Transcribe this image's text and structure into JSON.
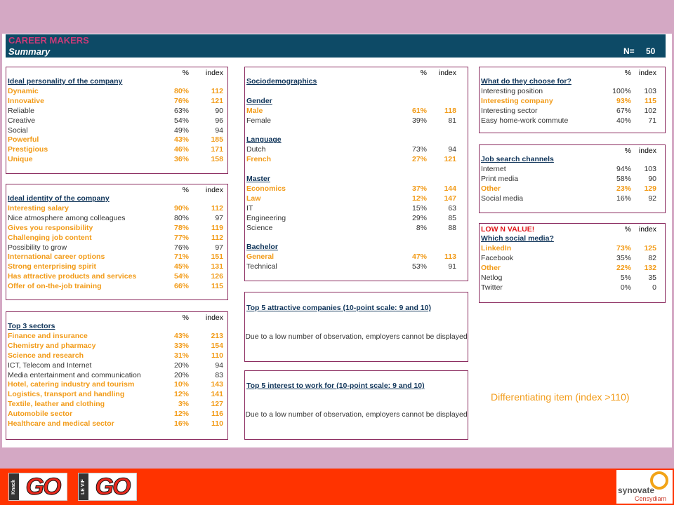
{
  "header": {
    "title": "CAREER MAKERS",
    "subtitle": "Summary",
    "n_label": "N=",
    "n_value": "50"
  },
  "col_pct": "%",
  "col_index": "index",
  "panels": {
    "personality": {
      "rows": [
        {
          "label": "Ideal personality of the company",
          "type": "sec"
        },
        {
          "label": "Dynamic",
          "pct": "80%",
          "idx": "112",
          "type": "hi"
        },
        {
          "label": "Innovative",
          "pct": "76%",
          "idx": "121",
          "type": "hi"
        },
        {
          "label": "Reliable",
          "pct": "63%",
          "idx": "90",
          "type": ""
        },
        {
          "label": "Creative",
          "pct": "54%",
          "idx": "96",
          "type": ""
        },
        {
          "label": "Social",
          "pct": "49%",
          "idx": "94",
          "type": ""
        },
        {
          "label": "Powerful",
          "pct": "43%",
          "idx": "185",
          "type": "hi"
        },
        {
          "label": "Prestigious",
          "pct": "46%",
          "idx": "171",
          "type": "hi"
        },
        {
          "label": "Unique",
          "pct": "36%",
          "idx": "158",
          "type": "hi"
        }
      ]
    },
    "identity": {
      "rows": [
        {
          "label": "Ideal identity of the company",
          "type": "sec"
        },
        {
          "label": "Interesting salary",
          "pct": "90%",
          "idx": "112",
          "type": "hi"
        },
        {
          "label": "Nice atmosphere among colleagues",
          "pct": "80%",
          "idx": "97",
          "type": ""
        },
        {
          "label": "Gives you responsibility",
          "pct": "78%",
          "idx": "119",
          "type": "hi"
        },
        {
          "label": "Challenging job content",
          "pct": "77%",
          "idx": "112",
          "type": "hi"
        },
        {
          "label": "Possibility to grow",
          "pct": "76%",
          "idx": "97",
          "type": ""
        },
        {
          "label": "International career options",
          "pct": "71%",
          "idx": "151",
          "type": "hi"
        },
        {
          "label": "Strong enterprising spirit",
          "pct": "45%",
          "idx": "131",
          "type": "hi"
        },
        {
          "label": "Has attractive products and services",
          "pct": "54%",
          "idx": "126",
          "type": "hi"
        },
        {
          "label": "Offer of on-the-job training",
          "pct": "66%",
          "idx": "115",
          "type": "hi"
        }
      ]
    },
    "sectors": {
      "rows": [
        {
          "label": "Top 3 sectors",
          "type": "sec"
        },
        {
          "label": "Finance and insurance",
          "pct": "43%",
          "idx": "213",
          "type": "hi"
        },
        {
          "label": "Chemistry and pharmacy",
          "pct": "33%",
          "idx": "154",
          "type": "hi"
        },
        {
          "label": "Science and research",
          "pct": "31%",
          "idx": "110",
          "type": "hi"
        },
        {
          "label": "ICT, Telecom and Internet",
          "pct": "20%",
          "idx": "94",
          "type": ""
        },
        {
          "label": "Media entertainment and communication",
          "pct": "20%",
          "idx": "83",
          "type": ""
        },
        {
          "label": "Hotel, catering industry and tourism",
          "pct": "10%",
          "idx": "143",
          "type": "hi"
        },
        {
          "label": "Logistics, transport and handling",
          "pct": "12%",
          "idx": "141",
          "type": "hi"
        },
        {
          "label": "Textile, leather and clothing",
          "pct": "3%",
          "idx": "127",
          "type": "hi"
        },
        {
          "label": "Automobile sector",
          "pct": "12%",
          "idx": "116",
          "type": "hi"
        },
        {
          "label": "Healthcare and medical sector",
          "pct": "16%",
          "idx": "110",
          "type": "hi"
        }
      ]
    },
    "socio": {
      "rows": [
        {
          "label": "Sociodemographics",
          "type": "sec"
        },
        {
          "label": "",
          "type": "blank"
        },
        {
          "label": "Gender",
          "type": "sec"
        },
        {
          "label": "Male",
          "pct": "61%",
          "idx": "118",
          "type": "hi"
        },
        {
          "label": "Female",
          "pct": "39%",
          "idx": "81",
          "type": ""
        },
        {
          "label": "",
          "type": "blank"
        },
        {
          "label": "Language",
          "type": "sec"
        },
        {
          "label": "Dutch",
          "pct": "73%",
          "idx": "94",
          "type": ""
        },
        {
          "label": "French",
          "pct": "27%",
          "idx": "121",
          "type": "hi"
        },
        {
          "label": "",
          "type": "blank"
        },
        {
          "label": "Master",
          "type": "sec"
        },
        {
          "label": "Economics",
          "pct": "37%",
          "idx": "144",
          "type": "hi"
        },
        {
          "label": "Law",
          "pct": "12%",
          "idx": "147",
          "type": "hi"
        },
        {
          "label": "IT",
          "pct": "15%",
          "idx": "63",
          "type": ""
        },
        {
          "label": "Engineering",
          "pct": "29%",
          "idx": "85",
          "type": ""
        },
        {
          "label": "Science",
          "pct": "8%",
          "idx": "88",
          "type": ""
        },
        {
          "label": "",
          "type": "blank"
        },
        {
          "label": "Bachelor",
          "type": "sec"
        },
        {
          "label": "General",
          "pct": "47%",
          "idx": "113",
          "type": "hi"
        },
        {
          "label": "Technical",
          "pct": "53%",
          "idx": "91",
          "type": ""
        }
      ]
    },
    "top5attractive": {
      "title": "Top 5 attractive companies (10-point scale: 9 and 10)",
      "note": "Due to a low number of observation, employers cannot be displayed"
    },
    "top5interest": {
      "title": "Top 5 interest to work for (10-point scale: 9 and 10)",
      "note": "Due to a low number of observation, employers cannot be displayed"
    },
    "choose": {
      "rows": [
        {
          "label": "What do they choose for?",
          "type": "sec"
        },
        {
          "label": "Interesting position",
          "pct": "100%",
          "idx": "103",
          "type": ""
        },
        {
          "label": "Interesting company",
          "pct": "93%",
          "idx": "115",
          "type": "hi"
        },
        {
          "label": "Interesting sector",
          "pct": "67%",
          "idx": "102",
          "type": ""
        },
        {
          "label": "Easy home-work commute",
          "pct": "40%",
          "idx": "71",
          "type": ""
        }
      ]
    },
    "channels": {
      "rows": [
        {
          "label": "Job search channels",
          "type": "sec"
        },
        {
          "label": "Internet",
          "pct": "94%",
          "idx": "103",
          "type": ""
        },
        {
          "label": "Print media",
          "pct": "58%",
          "idx": "90",
          "type": ""
        },
        {
          "label": "Other",
          "pct": "23%",
          "idx": "129",
          "type": "hi"
        },
        {
          "label": "Social media",
          "pct": "16%",
          "idx": "92",
          "type": ""
        }
      ]
    },
    "social": {
      "warning": "LOW N VALUE!",
      "rows": [
        {
          "label": "Which social media?",
          "type": "sec"
        },
        {
          "label": "LinkedIn",
          "pct": "73%",
          "idx": "125",
          "type": "hi"
        },
        {
          "label": "Facebook",
          "pct": "35%",
          "idx": "82",
          "type": ""
        },
        {
          "label": "Other",
          "pct": "22%",
          "idx": "132",
          "type": "hi"
        },
        {
          "label": "Netlog",
          "pct": "5%",
          "idx": "35",
          "type": ""
        },
        {
          "label": "Twitter",
          "pct": "0%",
          "idx": "0",
          "type": ""
        }
      ]
    }
  },
  "legend": "Differentiating item  (index >110)",
  "footer": {
    "logo1_side": "Knack",
    "logo1_word": "GO",
    "logo2_side": "LE VIF",
    "logo2_word": "GO",
    "brand_name": "synovate",
    "brand_sub": "Censydiam"
  },
  "colors": {
    "header_bg": "#0d4a66",
    "highlight": "#f29b18",
    "frame": "#8a2a5e",
    "footer": "#ff3300",
    "page_bg": "#d4a8c4"
  }
}
